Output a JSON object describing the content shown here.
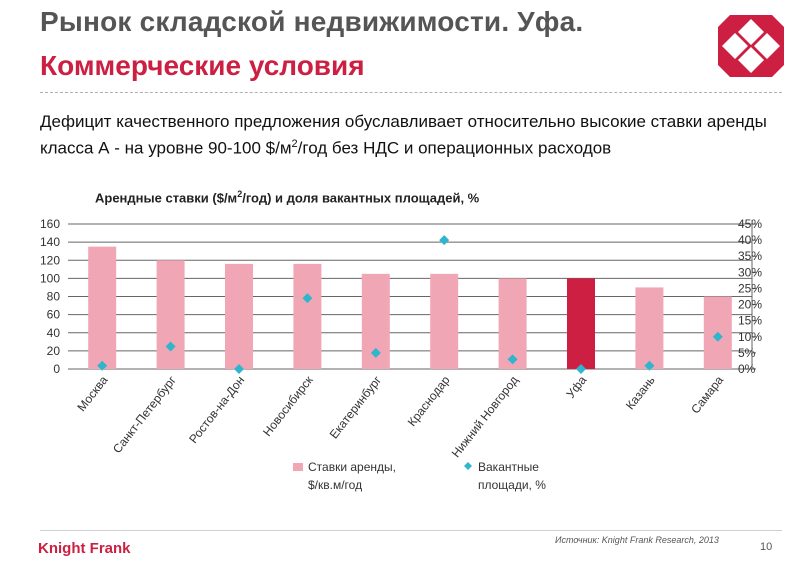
{
  "header": {
    "title_line1": "Рынок складской недвижимости. Уфа.",
    "title_line2": "Коммерческие условия"
  },
  "body": {
    "text_before": "Дефицит качественного предложения обуславливает относительно высокие ставки аренды  класса А - на уровне 90-100 $/м",
    "text_sup": "2",
    "text_after": "/год  без НДС и операционных расходов"
  },
  "chart_title": {
    "before": "Арендные ставки ($/м",
    "sup": "2",
    "after": "/год) и доля вакантных площадей, %"
  },
  "chart_data": {
    "type": "bar",
    "categories": [
      "Москва",
      "Санкт-Петербург",
      "Ростов-на-Дон",
      "Новосибирск",
      "Екатеринбург",
      "Краснодар",
      "Нижний Новгород",
      "Уфа",
      "Казань",
      "Самара"
    ],
    "series": [
      {
        "name": "Ставки аренды, $/кв.м/год",
        "axis": "left",
        "type": "bar",
        "values": [
          135,
          120,
          116,
          116,
          105,
          105,
          100,
          100,
          90,
          80
        ]
      },
      {
        "name": "Вакантные площади, %",
        "axis": "right",
        "type": "scatter",
        "values": [
          1,
          7,
          0,
          22,
          5,
          40,
          3,
          0,
          1,
          10
        ]
      }
    ],
    "highlight_category": "Уфа",
    "y_left": {
      "min": 0,
      "max": 160,
      "ticks": [
        "0",
        "20",
        "40",
        "60",
        "80",
        "100",
        "120",
        "140",
        "160"
      ]
    },
    "y_right": {
      "min": 0,
      "max": 45,
      "ticks": [
        "0%",
        "5%",
        "10%",
        "15%",
        "20%",
        "25%",
        "30%",
        "35%",
        "40%",
        "45%"
      ]
    },
    "legend": [
      {
        "label_line1": "Ставки аренды,",
        "label_line2": "$/кв.м/год"
      },
      {
        "label_line1": "Вакантные",
        "label_line2": "площади, %"
      }
    ],
    "colors": {
      "bar": "#f0a6b4",
      "highlight": "#cc1f41",
      "marker": "#2fb6cc",
      "grid": "#666666"
    }
  },
  "footer": {
    "source": "Источник: Knight Frank Research, 2013",
    "brand": "Knight Frank",
    "page": "10"
  }
}
